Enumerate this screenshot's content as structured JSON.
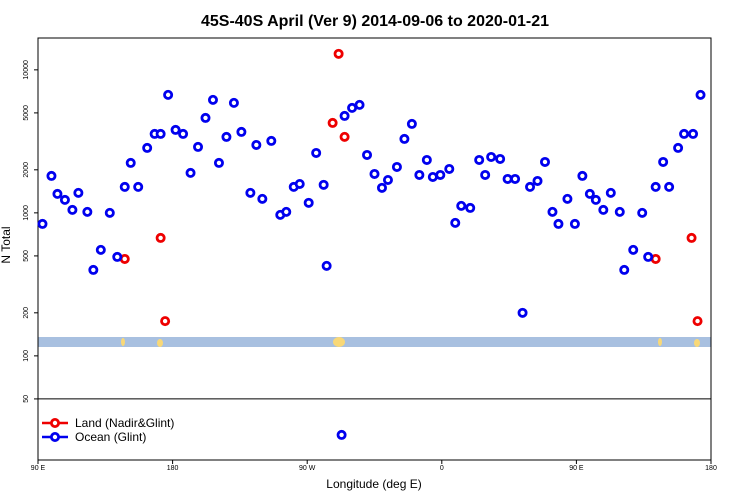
{
  "chart_data": {
    "type": "scatter",
    "title": "45S-40S April (Ver 9)   2014-09-06 to 2020-01-21",
    "xlabel": "Longitude (deg E)",
    "ylabel": "N Total",
    "log_y": true,
    "legend": "lower left",
    "xlim": [
      90,
      540
    ],
    "ylim": [
      18.7,
      16700
    ],
    "xticks": [
      {
        "value": 90,
        "label": "90 E"
      },
      180,
      {
        "value": 270,
        "label": "90 W"
      },
      {
        "value": 360,
        "label": "0"
      },
      {
        "value": 450,
        "label": "90 E"
      },
      {
        "value": 540,
        "label": "180"
      }
    ],
    "yticks": [
      50,
      100,
      200,
      500,
      1000,
      2000,
      5000,
      10000
    ],
    "series": [
      {
        "name": "Land (Nadir&Glint)",
        "color": "#ee0000",
        "x": [
          148,
          172,
          175,
          287,
          291,
          295,
          503,
          527,
          531
        ],
        "values": [
          476,
          668,
          175,
          4256,
          12940,
          3400,
          476,
          668,
          175
        ]
      },
      {
        "name": "Ocean (Glint)",
        "color": "#0000ee",
        "x": [
          93,
          99,
          103,
          108,
          113,
          117,
          123,
          127,
          132,
          138,
          143,
          148,
          152,
          157,
          163,
          168,
          172,
          177,
          182,
          187,
          192,
          197,
          202,
          207,
          211,
          216,
          221,
          226,
          232,
          236,
          240,
          246,
          252,
          256,
          261,
          265,
          271,
          276,
          281,
          283,
          293,
          295,
          300,
          305,
          310,
          315,
          320,
          324,
          330,
          335,
          340,
          345,
          350,
          354,
          359,
          365,
          369,
          373,
          379,
          385,
          389,
          393,
          399,
          404,
          409,
          414,
          419,
          424,
          429,
          434,
          438,
          444,
          449,
          454,
          459,
          463,
          468,
          473,
          479,
          482,
          488,
          494,
          498,
          503,
          508,
          512,
          518,
          522,
          528,
          533
        ],
        "values": [
          837,
          1813,
          1357,
          1232,
          1049,
          1380,
          1016,
          399,
          551,
          1000,
          492,
          1519,
          2235,
          1519,
          2845,
          3565,
          3565,
          6683,
          3802,
          3565,
          1903,
          2891,
          4613,
          6166,
          2235,
          3396,
          5875,
          3681,
          1380,
          2985,
          1253,
          3184,
          968,
          1016,
          1519,
          1592,
          1175,
          2624,
          1570,
          426,
          28,
          4764,
          5420,
          5689,
          2541,
          1871,
          1496,
          1698,
          2094,
          3289,
          4188,
          1841,
          2344,
          1782,
          1841,
          2028,
          851,
          1119,
          1083,
          2344,
          1841,
          2460,
          2382,
          1726,
          1726,
          200,
          1519,
          1671,
          2270,
          1016,
          837,
          1253,
          837,
          1813,
          1357,
          1232,
          1049,
          1380,
          1016,
          399,
          551,
          1000,
          492,
          1519,
          2270,
          1519,
          2845,
          3565,
          3565,
          6683
        ]
      }
    ]
  }
}
